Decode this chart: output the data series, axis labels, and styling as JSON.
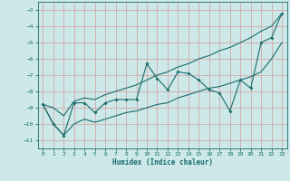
{
  "xlabel": "Humidex (Indice chaleur)",
  "bg_color": "#cce8e8",
  "line_color": "#1a6b6b",
  "grid_color": "#d4a8a8",
  "x_data": [
    0,
    1,
    2,
    3,
    4,
    5,
    6,
    7,
    8,
    9,
    10,
    11,
    12,
    13,
    14,
    15,
    16,
    17,
    18,
    19,
    20,
    21,
    22,
    23
  ],
  "y_main": [
    -8.8,
    -10.0,
    -10.7,
    -8.7,
    -8.7,
    -9.3,
    -8.7,
    -8.5,
    -8.5,
    -8.5,
    -6.3,
    -7.2,
    -7.9,
    -6.8,
    -6.9,
    -7.3,
    -7.9,
    -8.1,
    -9.2,
    -7.3,
    -7.8,
    -5.0,
    -4.7,
    -3.2
  ],
  "y_upper": [
    -8.8,
    -9.0,
    -9.5,
    -8.6,
    -8.4,
    -8.5,
    -8.2,
    -8.0,
    -7.8,
    -7.6,
    -7.3,
    -7.0,
    -6.8,
    -6.5,
    -6.3,
    -6.0,
    -5.8,
    -5.5,
    -5.3,
    -5.0,
    -4.7,
    -4.3,
    -4.0,
    -3.2
  ],
  "y_lower": [
    -8.8,
    -10.0,
    -10.7,
    -10.0,
    -9.7,
    -9.9,
    -9.7,
    -9.5,
    -9.3,
    -9.2,
    -9.0,
    -8.8,
    -8.7,
    -8.4,
    -8.2,
    -8.0,
    -7.8,
    -7.7,
    -7.5,
    -7.3,
    -7.1,
    -6.8,
    -6.0,
    -5.0
  ],
  "xlim": [
    -0.5,
    23.5
  ],
  "ylim": [
    -11.5,
    -2.5
  ],
  "yticks": [
    -3,
    -4,
    -5,
    -6,
    -7,
    -8,
    -9,
    -10,
    -11
  ],
  "xticks": [
    0,
    1,
    2,
    3,
    4,
    5,
    6,
    7,
    8,
    9,
    10,
    11,
    12,
    13,
    14,
    15,
    16,
    17,
    18,
    19,
    20,
    21,
    22,
    23
  ]
}
